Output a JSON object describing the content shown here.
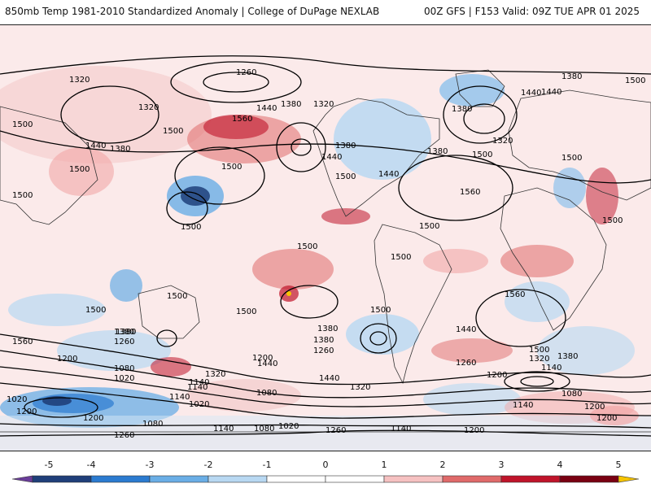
{
  "header": {
    "title_left": "850mb Temp 1981-2010 Standardized Anomaly | College of DuPage NEXLAB",
    "title_right": "00Z GFS | F153 Valid: 09Z TUE APR 01 2025"
  },
  "legend": {
    "tick_labels": [
      "-5",
      "-4",
      "-3",
      "-2",
      "-1",
      "0",
      "1",
      "2",
      "3",
      "4",
      "5"
    ],
    "colors": [
      "#6a3d9a",
      "#1f3f7a",
      "#2b7bd0",
      "#6aaee6",
      "#b8d8f2",
      "#ffffff",
      "#ffffff",
      "#f6c1c1",
      "#e06a6a",
      "#c0142a",
      "#7a0012",
      "#f6c400"
    ]
  },
  "contour_labels": [
    "1260",
    "1320",
    "1380",
    "1440",
    "1500",
    "1320",
    "1500",
    "1440",
    "1560",
    "1440",
    "1380",
    "1320",
    "1500",
    "1380",
    "1380",
    "1500",
    "1440",
    "1500",
    "1380",
    "1500",
    "1440",
    "1500",
    "1500",
    "1560",
    "1380",
    "1440",
    "1320",
    "1500",
    "1500",
    "1500",
    "1500",
    "1500",
    "1500",
    "1500",
    "1500",
    "1560",
    "1500",
    "1500",
    "1560",
    "1440",
    "1380",
    "1260",
    "1200",
    "1380",
    "1260",
    "1200",
    "1080",
    "1020",
    "1020",
    "1200",
    "1140",
    "1140",
    "1020",
    "1200",
    "1080",
    "1140",
    "1080",
    "1020",
    "1260",
    "1260",
    "1140",
    "1200",
    "1440",
    "1320",
    "1380",
    "1260",
    "1200",
    "1500",
    "1320",
    "1380",
    "1140",
    "1080",
    "1140",
    "1200",
    "1200",
    "1440",
    "1320",
    "1380",
    "1080",
    "1140"
  ]
}
